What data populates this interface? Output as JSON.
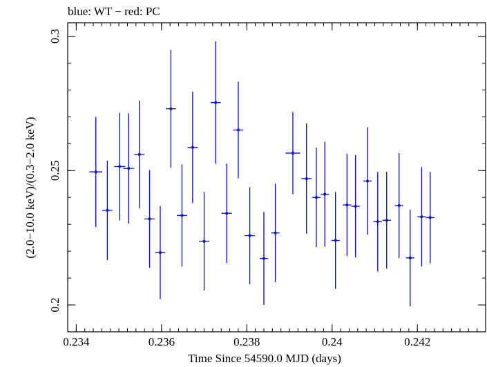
{
  "chart_data": {
    "type": "scatter",
    "title": "blue: WT − red: PC",
    "xlabel": "Time Since 54590.0 MJD (days)",
    "ylabel": "(2.0−10.0 keV)/(0.3−2.0 keV)",
    "xlim": [
      0.2338,
      0.2436
    ],
    "ylim": [
      0.19,
      0.305
    ],
    "grid": false,
    "x_ticks": [
      0.234,
      0.236,
      0.238,
      0.24,
      0.242
    ],
    "x_tick_labels": [
      "0.234",
      "0.236",
      "0.238",
      "0.24",
      "0.242"
    ],
    "x_minor_step": 0.0002,
    "y_ticks": [
      0.2,
      0.25,
      0.3
    ],
    "y_tick_labels": [
      "0.2",
      "0.25",
      "0.3"
    ],
    "y_minor_step": 0.01,
    "series": [
      {
        "color": "#0000ee",
        "points": [
          {
            "x": 0.23446,
            "xerr": 0.00015,
            "y": 0.2495,
            "yerr": 0.0205
          },
          {
            "x": 0.23473,
            "xerr": 0.00012,
            "y": 0.2352,
            "yerr": 0.0185
          },
          {
            "x": 0.23502,
            "xerr": 0.00013,
            "y": 0.2515,
            "yerr": 0.02
          },
          {
            "x": 0.23523,
            "xerr": 0.00013,
            "y": 0.2508,
            "yerr": 0.0205
          },
          {
            "x": 0.23548,
            "xerr": 0.00012,
            "y": 0.256,
            "yerr": 0.02
          },
          {
            "x": 0.23572,
            "xerr": 0.00012,
            "y": 0.232,
            "yerr": 0.0182
          },
          {
            "x": 0.23597,
            "xerr": 0.00012,
            "y": 0.2195,
            "yerr": 0.0173
          },
          {
            "x": 0.23622,
            "xerr": 0.00012,
            "y": 0.273,
            "yerr": 0.022
          },
          {
            "x": 0.23648,
            "xerr": 0.00012,
            "y": 0.2333,
            "yerr": 0.019
          },
          {
            "x": 0.23673,
            "xerr": 0.00012,
            "y": 0.2586,
            "yerr": 0.0207
          },
          {
            "x": 0.237,
            "xerr": 0.00012,
            "y": 0.2237,
            "yerr": 0.0183
          },
          {
            "x": 0.23727,
            "xerr": 0.00012,
            "y": 0.2753,
            "yerr": 0.0228
          },
          {
            "x": 0.23753,
            "xerr": 0.00012,
            "y": 0.2341,
            "yerr": 0.0185
          },
          {
            "x": 0.2378,
            "xerr": 0.00012,
            "y": 0.2651,
            "yerr": 0.018
          },
          {
            "x": 0.23807,
            "xerr": 0.00012,
            "y": 0.2258,
            "yerr": 0.018
          },
          {
            "x": 0.2384,
            "xerr": 0.0001,
            "y": 0.2173,
            "yerr": 0.0173
          },
          {
            "x": 0.23867,
            "xerr": 0.0001,
            "y": 0.2268,
            "yerr": 0.0183
          },
          {
            "x": 0.23908,
            "xerr": 0.00017,
            "y": 0.2565,
            "yerr": 0.0153
          },
          {
            "x": 0.2394,
            "xerr": 0.00012,
            "y": 0.247,
            "yerr": 0.0205
          },
          {
            "x": 0.23963,
            "xerr": 0.0001,
            "y": 0.24,
            "yerr": 0.0185
          },
          {
            "x": 0.23983,
            "xerr": 0.0001,
            "y": 0.2412,
            "yerr": 0.0195
          },
          {
            "x": 0.24008,
            "xerr": 0.0001,
            "y": 0.224,
            "yerr": 0.018
          },
          {
            "x": 0.24035,
            "xerr": 0.0001,
            "y": 0.2372,
            "yerr": 0.019
          },
          {
            "x": 0.24055,
            "xerr": 0.0001,
            "y": 0.2367,
            "yerr": 0.019
          },
          {
            "x": 0.24083,
            "xerr": 0.0001,
            "y": 0.2461,
            "yerr": 0.02
          },
          {
            "x": 0.24107,
            "xerr": 0.0001,
            "y": 0.231,
            "yerr": 0.0185
          },
          {
            "x": 0.24128,
            "xerr": 0.0001,
            "y": 0.2315,
            "yerr": 0.018
          },
          {
            "x": 0.24157,
            "xerr": 0.0001,
            "y": 0.237,
            "yerr": 0.0195
          },
          {
            "x": 0.24183,
            "xerr": 0.0001,
            "y": 0.2175,
            "yerr": 0.018
          },
          {
            "x": 0.2421,
            "xerr": 0.0001,
            "y": 0.2328,
            "yerr": 0.0185
          },
          {
            "x": 0.2423,
            "xerr": 0.0001,
            "y": 0.2325,
            "yerr": 0.017
          }
        ]
      }
    ]
  }
}
